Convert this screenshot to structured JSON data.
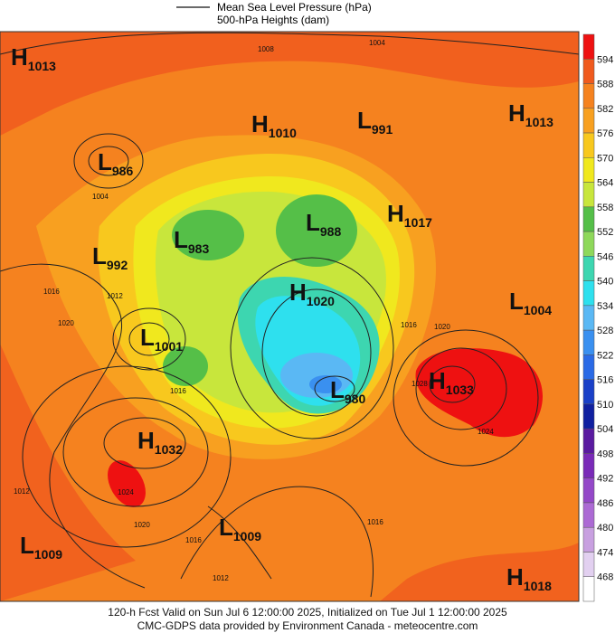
{
  "header": {
    "line1": "Mean Sea Level Pressure (hPa)",
    "line2": "500-hPa Heights (dam)"
  },
  "centers": [
    {
      "kind": "H",
      "value": "1013"
    },
    {
      "kind": "L",
      "value": "986"
    },
    {
      "kind": "H",
      "value": "1010"
    },
    {
      "kind": "L",
      "value": "991"
    },
    {
      "kind": "H",
      "value": "1013"
    },
    {
      "kind": "L",
      "value": "988"
    },
    {
      "kind": "H",
      "value": "1017"
    },
    {
      "kind": "L",
      "value": "983"
    },
    {
      "kind": "L",
      "value": "992"
    },
    {
      "kind": "H",
      "value": "1020"
    },
    {
      "kind": "L",
      "value": "1004"
    },
    {
      "kind": "L",
      "value": "1001"
    },
    {
      "kind": "H",
      "value": "1033"
    },
    {
      "kind": "L",
      "value": "980"
    },
    {
      "kind": "H",
      "value": "1032"
    },
    {
      "kind": "L",
      "value": "1009"
    },
    {
      "kind": "L",
      "value": "1009"
    },
    {
      "kind": "H",
      "value": "1018"
    }
  ],
  "contour_labels": [
    "1004",
    "1008",
    "1004",
    "1016",
    "1012",
    "1020",
    "1016",
    "1024",
    "1020",
    "1016",
    "1012",
    "1028",
    "1024",
    "1016",
    "1012",
    "1020",
    "1016"
  ],
  "colorbar": [
    {
      "value": 594,
      "color": "#ee1111"
    },
    {
      "value": 588,
      "color": "#f05a1e"
    },
    {
      "value": 582,
      "color": "#f5821f"
    },
    {
      "value": 576,
      "color": "#f8a020"
    },
    {
      "value": 570,
      "color": "#f8c81e"
    },
    {
      "value": 564,
      "color": "#f0e81e"
    },
    {
      "value": 558,
      "color": "#c8e63c"
    },
    {
      "value": 552,
      "color": "#55bf48"
    },
    {
      "value": 546,
      "color": "#8ed85a"
    },
    {
      "value": 540,
      "color": "#3dd6b0"
    },
    {
      "value": 534,
      "color": "#2ee0ee"
    },
    {
      "value": 528,
      "color": "#5ab8f4"
    },
    {
      "value": 522,
      "color": "#3a90f0"
    },
    {
      "value": 516,
      "color": "#2a6ae6"
    },
    {
      "value": 510,
      "color": "#1a40c8"
    },
    {
      "value": 504,
      "color": "#1020a0"
    },
    {
      "value": 498,
      "color": "#5a1aa0"
    },
    {
      "value": 492,
      "color": "#7a2ab8"
    },
    {
      "value": 486,
      "color": "#9448c8"
    },
    {
      "value": 480,
      "color": "#ac6ad4"
    },
    {
      "value": 474,
      "color": "#c8a0e0"
    },
    {
      "value": 468,
      "color": "#e2d0f0"
    }
  ],
  "footer": {
    "line1": "120-h Fcst Valid on Sun Jul  6 12:00:00 2025, Initialized on Tue Jul  1 12:00:00 2025",
    "line2": "CMC-GDPS data provided by Environment Canada - meteocentre.com"
  }
}
